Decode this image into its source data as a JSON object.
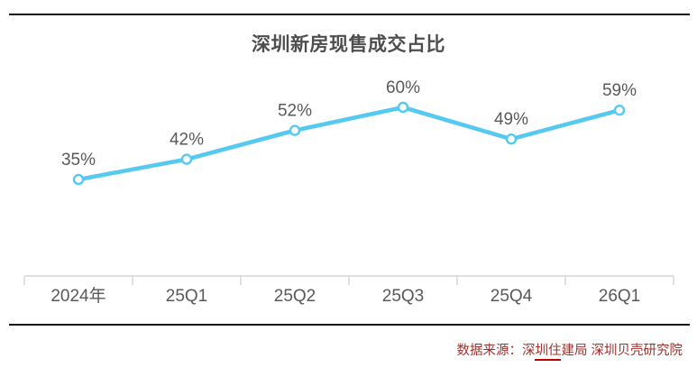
{
  "title": "深圳新房现售成交占比",
  "source": {
    "before": "数据来源：深",
    "underlined": "圳住",
    "after": "建局 深圳贝壳研究院"
  },
  "colors": {
    "line": "#55C9F0",
    "axis": "#D6D6D6",
    "value_label": "#595959",
    "axis_label": "#595959",
    "title": "#4E4E4E",
    "border": "#141414",
    "source_text": "#9E312E",
    "underline": "#C00000"
  },
  "chart_data": {
    "type": "line",
    "title": "深圳新房现售成交占比",
    "categories": [
      "2024年",
      "25Q1",
      "25Q2",
      "25Q3",
      "25Q4",
      "26Q1"
    ],
    "values": [
      35,
      42,
      52,
      60,
      49,
      59
    ],
    "labels": [
      "35%",
      "42%",
      "52%",
      "60%",
      "49%",
      "59%"
    ],
    "xlabel": "",
    "ylabel": "",
    "ylim": [
      30,
      65
    ],
    "grid": false,
    "legend": "none",
    "marker": "hollow-circle",
    "y_axis_visible": false,
    "x_ticks_at_boundaries": true
  }
}
